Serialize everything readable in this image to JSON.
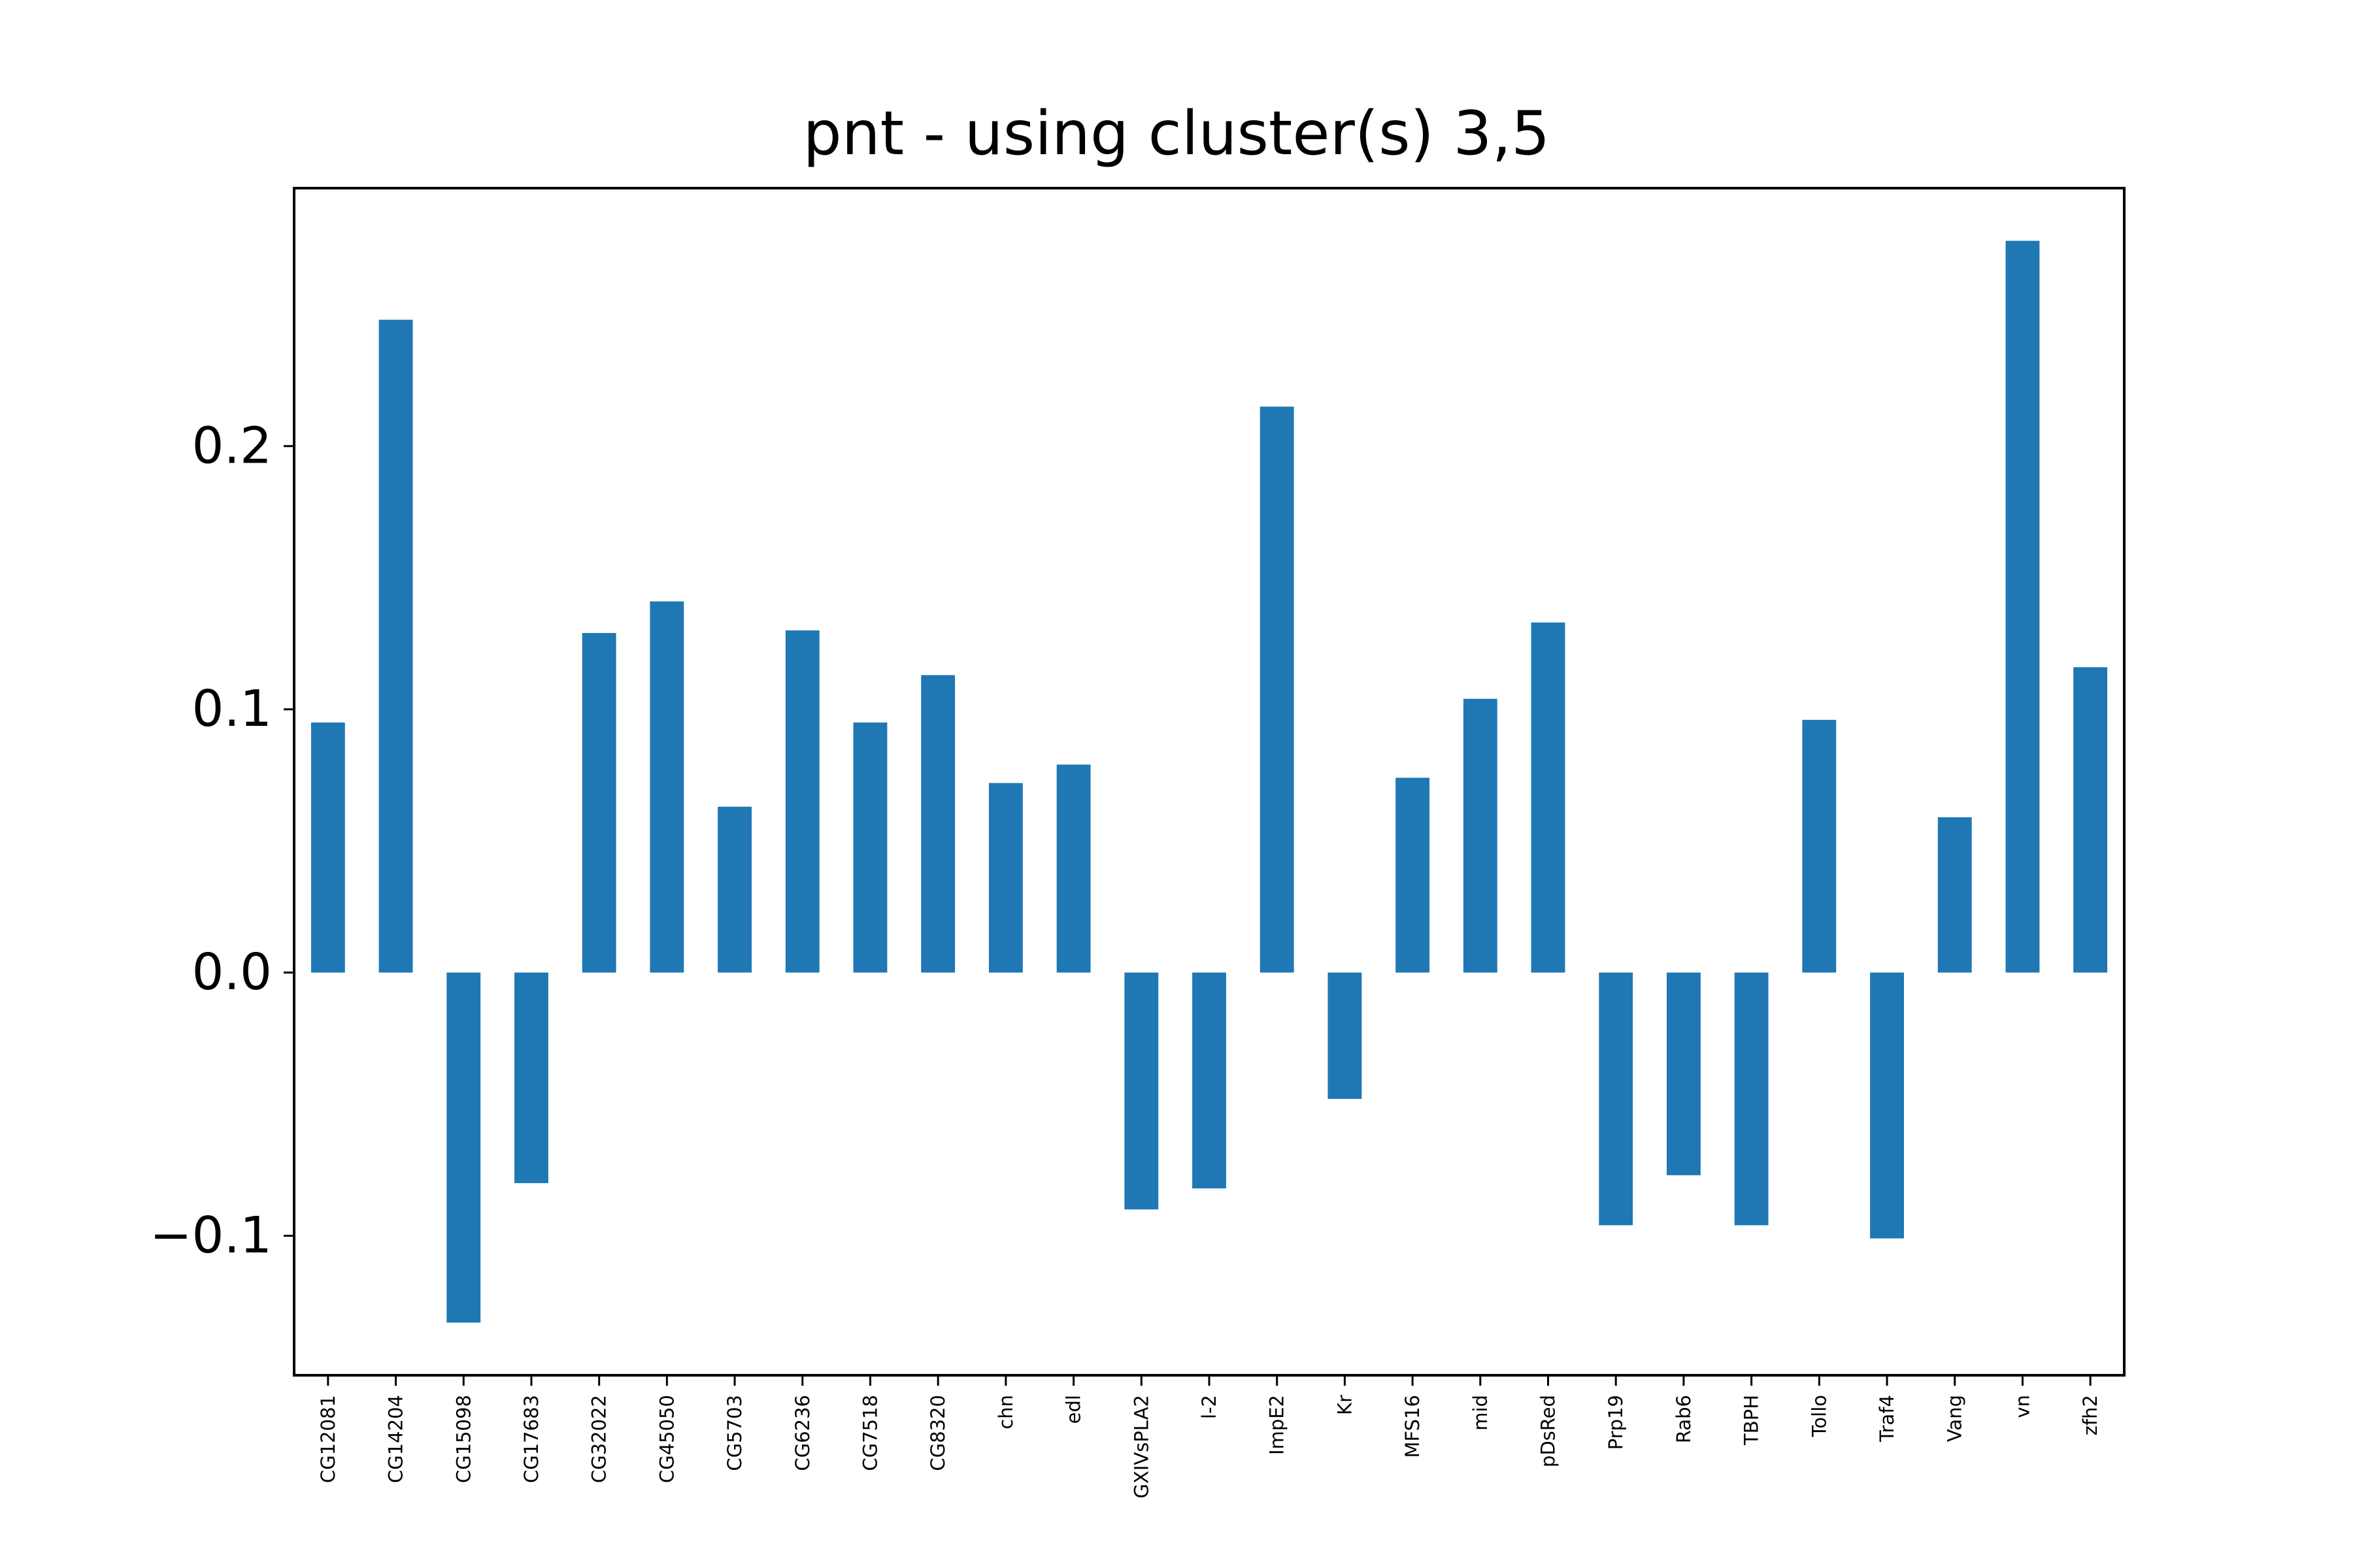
{
  "chart_data": {
    "type": "bar",
    "title": "pnt - using cluster(s) 3,5",
    "xlabel": "",
    "ylabel": "",
    "ylim": [
      -0.153,
      0.298
    ],
    "yticks": [
      -0.1,
      0.0,
      0.1,
      0.2
    ],
    "ytick_labels": [
      "−0.1",
      "0.0",
      "0.1",
      "0.2"
    ],
    "grid": false,
    "legend": "none",
    "bar_color": "#1f77b4",
    "categories": [
      "CG12081",
      "CG14204",
      "CG15098",
      "CG17683",
      "CG32022",
      "CG45050",
      "CG5703",
      "CG6236",
      "CG7518",
      "CG8320",
      "chn",
      "edl",
      "GXIVsPLA2",
      "l-2",
      "ImpE2",
      "Kr",
      "MFS16",
      "mid",
      "pDsRed",
      "Prp19",
      "Rab6",
      "TBPH",
      "Tollo",
      "Traf4",
      "Vang",
      "vn",
      "zfh2"
    ],
    "values": [
      0.095,
      0.248,
      -0.133,
      -0.08,
      0.129,
      0.141,
      0.063,
      0.13,
      0.095,
      0.113,
      0.072,
      0.079,
      -0.09,
      -0.082,
      0.215,
      -0.048,
      0.074,
      0.104,
      0.133,
      -0.096,
      -0.077,
      -0.096,
      0.096,
      -0.101,
      0.059,
      0.278,
      0.116
    ]
  }
}
